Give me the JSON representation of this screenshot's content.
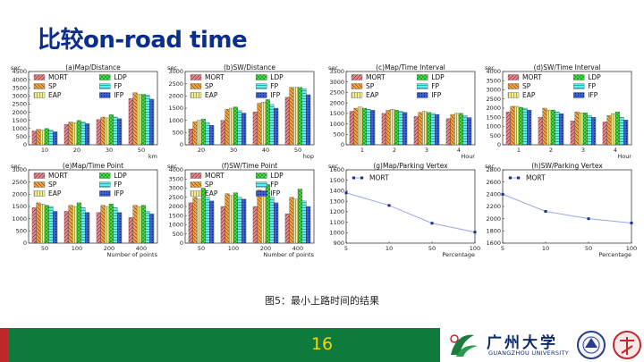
{
  "slide": {
    "title": "比较on-road time",
    "caption": "图5：最小上路时间的结果",
    "page_number": "16",
    "university": "广州大学",
    "university_en": "GUANGZHOU UNIVERSITY"
  },
  "colors": {
    "MORT": "#e8848c",
    "SP": "#f6a23e",
    "EAP": "#f2f08a",
    "LDP": "#3fe03f",
    "FP": "#5cf0f0",
    "IFP": "#3b5fd6",
    "title": "#0b2d8c",
    "footer": "#0e7a3c"
  },
  "chart_data": [
    {
      "type": "bar",
      "title": "(a)Map/Distance",
      "ylabel": "sec",
      "xlabel": "km",
      "ylim": [
        0,
        4500
      ],
      "yticks": [
        "0",
        "500",
        "1000",
        "1500",
        "2000",
        "2500",
        "3000",
        "3500",
        "4000",
        "4500"
      ],
      "categories": [
        "10",
        "20",
        "30",
        "50"
      ],
      "series": [
        {
          "name": "MORT",
          "values": [
            850,
            1250,
            1550,
            2850
          ]
        },
        {
          "name": "SP",
          "values": [
            950,
            1400,
            1700,
            3200
          ]
        },
        {
          "name": "EAP",
          "values": [
            900,
            1350,
            1650,
            3100
          ]
        },
        {
          "name": "LDP",
          "values": [
            1000,
            1500,
            1850,
            3100
          ]
        },
        {
          "name": "FP",
          "values": [
            900,
            1400,
            1700,
            3050
          ]
        },
        {
          "name": "IFP",
          "values": [
            800,
            1300,
            1600,
            2800
          ]
        }
      ]
    },
    {
      "type": "bar",
      "title": "(b)SW/Distance",
      "ylabel": "sec",
      "xlabel": "hop",
      "ylim": [
        0,
        3000
      ],
      "yticks": [
        "0",
        "500",
        "1000",
        "1500",
        "2000",
        "2500",
        "3000"
      ],
      "categories": [
        "20",
        "30",
        "40",
        "50"
      ],
      "series": [
        {
          "name": "MORT",
          "values": [
            650,
            1000,
            1350,
            1950
          ]
        },
        {
          "name": "SP",
          "values": [
            950,
            1450,
            1700,
            2350
          ]
        },
        {
          "name": "EAP",
          "values": [
            1000,
            1500,
            1750,
            2350
          ]
        },
        {
          "name": "LDP",
          "values": [
            1050,
            1550,
            1850,
            2350
          ]
        },
        {
          "name": "FP",
          "values": [
            900,
            1400,
            1650,
            2300
          ]
        },
        {
          "name": "IFP",
          "values": [
            800,
            1300,
            1500,
            2050
          ]
        }
      ]
    },
    {
      "type": "bar",
      "title": "(c)Map/Time Interval",
      "ylabel": "sec",
      "xlabel": "Hour",
      "ylim": [
        0,
        3500
      ],
      "yticks": [
        "0",
        "500",
        "1000",
        "1500",
        "2000",
        "2500",
        "3000",
        "3500"
      ],
      "categories": [
        "1",
        "2",
        "3",
        "4"
      ],
      "series": [
        {
          "name": "MORT",
          "values": [
            1600,
            1500,
            1350,
            1250
          ]
        },
        {
          "name": "SP",
          "values": [
            1750,
            1650,
            1550,
            1450
          ]
        },
        {
          "name": "EAP",
          "values": [
            1800,
            1700,
            1600,
            1500
          ]
        },
        {
          "name": "LDP",
          "values": [
            1750,
            1650,
            1550,
            1500
          ]
        },
        {
          "name": "FP",
          "values": [
            1700,
            1600,
            1500,
            1400
          ]
        },
        {
          "name": "IFP",
          "values": [
            1650,
            1550,
            1450,
            1300
          ]
        }
      ]
    },
    {
      "type": "bar",
      "title": "(d)SW/Time Interval",
      "ylabel": "sec",
      "xlabel": "Hour",
      "ylim": [
        0,
        4000
      ],
      "yticks": [
        "0",
        "500",
        "1000",
        "1500",
        "2000",
        "2500",
        "3000",
        "3500",
        "4000"
      ],
      "categories": [
        "1",
        "2",
        "3",
        "4"
      ],
      "series": [
        {
          "name": "MORT",
          "values": [
            1800,
            1500,
            1300,
            1250
          ]
        },
        {
          "name": "SP",
          "values": [
            2100,
            2000,
            1800,
            1600
          ]
        },
        {
          "name": "EAP",
          "values": [
            2100,
            1900,
            1750,
            1700
          ]
        },
        {
          "name": "LDP",
          "values": [
            2050,
            1900,
            1750,
            1800
          ]
        },
        {
          "name": "FP",
          "values": [
            2000,
            1800,
            1600,
            1500
          ]
        },
        {
          "name": "IFP",
          "values": [
            1900,
            1700,
            1500,
            1350
          ]
        }
      ]
    },
    {
      "type": "bar",
      "title": "(e)Map/Time Point",
      "ylabel": "sec",
      "xlabel": "Number of points",
      "ylim": [
        0,
        3000
      ],
      "yticks": [
        "0",
        "500",
        "1000",
        "1500",
        "2000",
        "2500",
        "3000"
      ],
      "categories": [
        "50",
        "100",
        "200",
        "400"
      ],
      "series": [
        {
          "name": "MORT",
          "values": [
            1450,
            1300,
            1250,
            1050
          ]
        },
        {
          "name": "SP",
          "values": [
            1650,
            1550,
            1550,
            1550
          ]
        },
        {
          "name": "EAP",
          "values": [
            1600,
            1500,
            1500,
            1500
          ]
        },
        {
          "name": "LDP",
          "values": [
            1550,
            1650,
            1600,
            1550
          ]
        },
        {
          "name": "FP",
          "values": [
            1500,
            1450,
            1450,
            1300
          ]
        },
        {
          "name": "IFP",
          "values": [
            1300,
            1250,
            1250,
            1200
          ]
        }
      ]
    },
    {
      "type": "bar",
      "title": "(f)SW/Time Point",
      "ylabel": "sec",
      "xlabel": "Number of points",
      "ylim": [
        0,
        4000
      ],
      "yticks": [
        "0",
        "500",
        "1000",
        "1500",
        "2000",
        "2500",
        "3000",
        "3500",
        "4000"
      ],
      "categories": [
        "50",
        "100",
        "200",
        "400"
      ],
      "series": [
        {
          "name": "MORT",
          "values": [
            2200,
            2000,
            2000,
            1600
          ]
        },
        {
          "name": "SP",
          "values": [
            2500,
            2700,
            2900,
            2500
          ]
        },
        {
          "name": "EAP",
          "values": [
            2400,
            2600,
            2800,
            2400
          ]
        },
        {
          "name": "LDP",
          "values": [
            3000,
            2750,
            3200,
            2950
          ]
        },
        {
          "name": "FP",
          "values": [
            2500,
            2500,
            2500,
            2300
          ]
        },
        {
          "name": "IFP",
          "values": [
            2300,
            2400,
            2200,
            2000
          ]
        }
      ]
    },
    {
      "type": "line",
      "title": "(g)Map/Parking Vertex",
      "ylabel": "sec",
      "xlabel": "Percentage",
      "ylim": [
        900,
        1600
      ],
      "yticks": [
        "900",
        "1000",
        "1100",
        "1200",
        "1300",
        "1400",
        "1500",
        "1600"
      ],
      "categories": [
        "5",
        "10",
        "50",
        "100"
      ],
      "series": [
        {
          "name": "MORT",
          "values": [
            1380,
            1260,
            1090,
            1005
          ]
        }
      ]
    },
    {
      "type": "line",
      "title": "(h)SW/Parking Vertex",
      "ylabel": "sec",
      "xlabel": "Percentage",
      "ylim": [
        1600,
        2800
      ],
      "yticks": [
        "1600",
        "1800",
        "2000",
        "2200",
        "2400",
        "2600",
        "2800"
      ],
      "categories": [
        "5",
        "10",
        "50",
        "100"
      ],
      "series": [
        {
          "name": "MORT",
          "values": [
            2400,
            2120,
            2000,
            1930
          ]
        }
      ]
    }
  ]
}
